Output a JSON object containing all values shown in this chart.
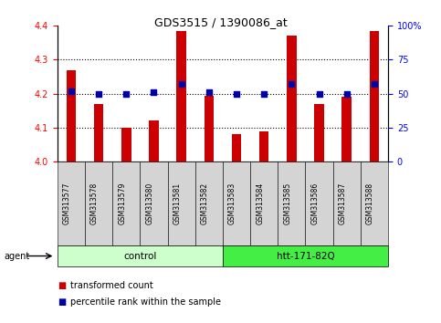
{
  "title": "GDS3515 / 1390086_at",
  "samples": [
    "GSM313577",
    "GSM313578",
    "GSM313579",
    "GSM313580",
    "GSM313581",
    "GSM313582",
    "GSM313583",
    "GSM313584",
    "GSM313585",
    "GSM313586",
    "GSM313587",
    "GSM313588"
  ],
  "red_values": [
    4.27,
    4.17,
    4.1,
    4.12,
    4.385,
    4.195,
    4.08,
    4.09,
    4.37,
    4.17,
    4.19,
    4.385
  ],
  "blue_values": [
    52,
    50,
    50,
    51,
    57,
    51,
    50,
    50,
    57,
    50,
    50,
    57
  ],
  "ylim_left": [
    4.0,
    4.4
  ],
  "ylim_right": [
    0,
    100
  ],
  "left_ticks": [
    4.0,
    4.1,
    4.2,
    4.3,
    4.4
  ],
  "right_ticks": [
    0,
    25,
    50,
    75,
    100
  ],
  "right_tick_labels": [
    "0",
    "25",
    "50",
    "75",
    "100%"
  ],
  "bar_color": "#CC0000",
  "dot_color": "#0000AA",
  "group1_color": "#ccffcc",
  "group2_color": "#44ee44",
  "group1_label": "control",
  "group2_label": "htt-171-82Q",
  "group1_range": [
    0,
    5
  ],
  "group2_range": [
    6,
    11
  ],
  "agent_label": "agent",
  "legend_red_label": "transformed count",
  "legend_blue_label": "percentile rank within the sample",
  "grid_values": [
    4.1,
    4.2,
    4.3
  ],
  "bar_width": 0.35
}
